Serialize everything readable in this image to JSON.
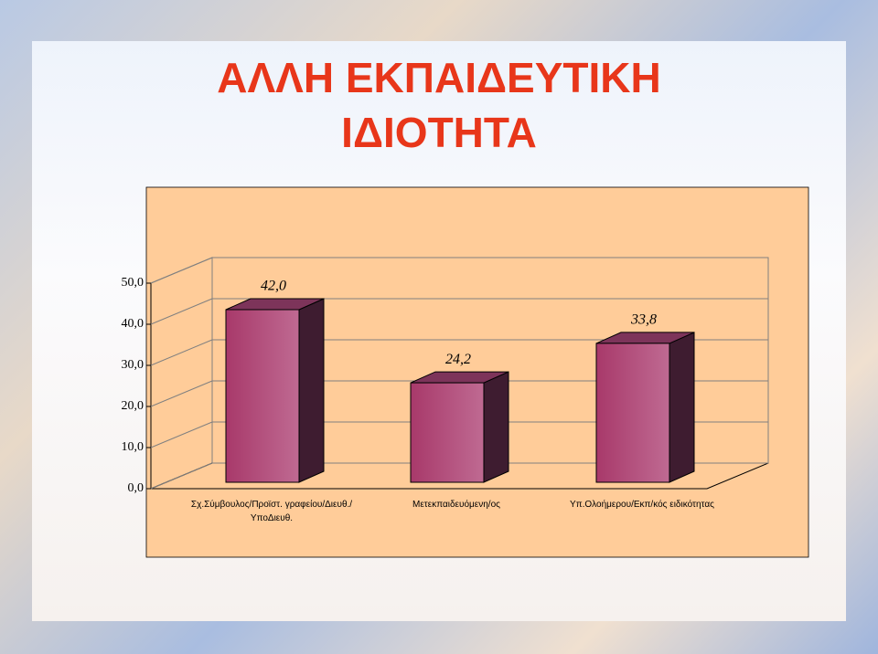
{
  "chart_data": {
    "type": "bar3d",
    "title": "ΑΛΛΗ ΕΚΠΑΙΔΕΥΤΙΚΗ ΙΔΙΟΤΗΤΑ",
    "categories": [
      "Σχ.Σύμβουλος/Προϊστ. γραφείου/Διευθ./ΥποΔιευθ.",
      "Μετεκπαιδευόμενη/ος",
      "Υπ.Ολοήμερου/Εκπ/κός ειδικότητας"
    ],
    "values": [
      42.0,
      24.2,
      33.8
    ],
    "value_labels": [
      "42,0",
      "24,2",
      "33,8"
    ],
    "color": "#a8396a",
    "ylim": [
      0,
      50
    ],
    "yticks": [
      {
        "value": 0,
        "label": "0,0"
      },
      {
        "value": 10,
        "label": "10,0"
      },
      {
        "value": 20,
        "label": "20,0"
      },
      {
        "value": 30,
        "label": "30,0"
      },
      {
        "value": 40,
        "label": "40,0"
      },
      {
        "value": 50,
        "label": "50,0"
      }
    ],
    "grid": true
  }
}
